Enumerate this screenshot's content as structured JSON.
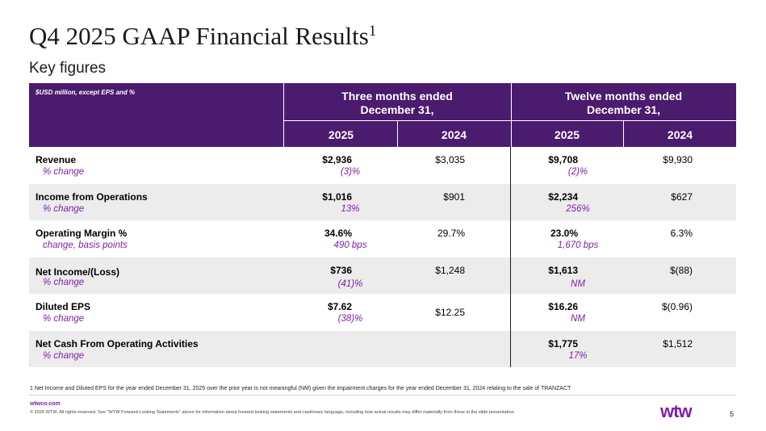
{
  "title": "Q4 2025 GAAP Financial Results",
  "title_sup": "1",
  "subtitle": "Key figures",
  "table": {
    "note": "$USD million, except EPS and %",
    "groups": [
      {
        "line1": "Three months ended",
        "line2": "December 31,"
      },
      {
        "line1": "Twelve months ended",
        "line2": "December 31,"
      }
    ],
    "years": [
      "2025",
      "2024",
      "2025",
      "2024"
    ],
    "rows": [
      {
        "label": "Revenue",
        "sub": "% change",
        "q25": "$2,936",
        "q24": "$3,035",
        "y25": "$9,708",
        "y24": "$9,930",
        "qchg": "(3)%",
        "ychg": "(2)%"
      },
      {
        "label": "Income from Operations",
        "sub": "% change",
        "q25": "$1,016",
        "q24": "$901",
        "y25": "$2,234",
        "y24": "$627",
        "qchg": "13%",
        "ychg": "256%"
      },
      {
        "label": "Operating Margin %",
        "sub": "change, basis points",
        "q25": "34.6%",
        "q24": "29.7%",
        "y25": "23.0%",
        "y24": "6.3%",
        "qchg": "490 bps",
        "ychg": "1,670 bps"
      },
      {
        "label": "Net Income/(Loss)",
        "sub": "% change",
        "q25": "$736",
        "q24": "$1,248",
        "y25": "$1,613",
        "y24": "$(88)",
        "qchg": "(41)%",
        "ychg": "NM"
      },
      {
        "label": "Diluted EPS",
        "sub": "% change",
        "q25": "$7.62",
        "q24": "$12.25",
        "y25": "$16.26",
        "y24": "$(0.96)",
        "qchg": "(38)%",
        "ychg": "NM"
      },
      {
        "label": "Net Cash From Operating Activities",
        "sub": "% change",
        "q25": "",
        "q24": "",
        "y25": "$1,775",
        "y24": "$1,512",
        "qchg": "",
        "ychg": "17%"
      }
    ]
  },
  "footnote": "1 Net Income and Diluted EPS for the year ended December 31, 2025 over the prior year is not meaningful (NM) given the impairment charges for the year ended December 31, 2024 relating to the sale of TRANZACT",
  "footer": {
    "site": "wtwco.com",
    "copyright": "© 2026 WTW. All rights reserved. See \"WTW Forward-Looking Statements\" above for information about forward-looking statements and cautionary language, including how actual results may differ materially from those in the slide presentation.",
    "logo": "wtw",
    "page": "5"
  }
}
